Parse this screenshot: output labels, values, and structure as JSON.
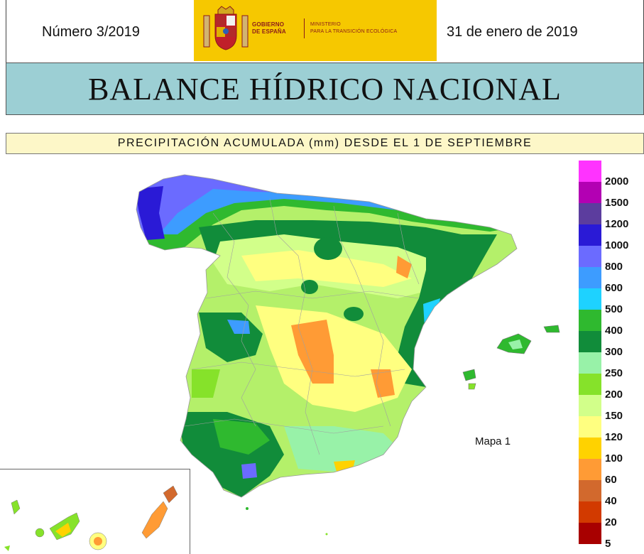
{
  "header": {
    "issue": "Número 3/2019",
    "date": "31 de enero de 2019",
    "logo": {
      "gobierno": "GOBIERNO DE ESPAÑA",
      "ministerio": "MINISTERIO PARA LA TRANSICIÓN ECOLÓGICA"
    }
  },
  "title": "BALANCE HÍDRICO NACIONAL",
  "subtitle": "PRECIPITACIÓN ACUMULADA (mm) DESDE EL 1 DE SEPTIEMBRE",
  "map": {
    "label": "Mapa 1"
  },
  "legend": {
    "items": [
      {
        "label": "2000",
        "color": "#ff33ff"
      },
      {
        "label": "1500",
        "color": "#b300b3"
      },
      {
        "label": "1200",
        "color": "#5c3d9e"
      },
      {
        "label": "1000",
        "color": "#2a1ad6"
      },
      {
        "label": "800",
        "color": "#6b6bff"
      },
      {
        "label": "600",
        "color": "#3d9cff"
      },
      {
        "label": "500",
        "color": "#1ed2ff"
      },
      {
        "label": "400",
        "color": "#2fb92f"
      },
      {
        "label": "300",
        "color": "#118c3a"
      },
      {
        "label": "250",
        "color": "#98f2a8"
      },
      {
        "label": "200",
        "color": "#86e22a"
      },
      {
        "label": "150",
        "color": "#d2ff8a"
      },
      {
        "label": "120",
        "color": "#ffff80"
      },
      {
        "label": "100",
        "color": "#ffd200"
      },
      {
        "label": "60",
        "color": "#ff9b35"
      },
      {
        "label": "40",
        "color": "#d2692d"
      },
      {
        "label": "20",
        "color": "#d23a00"
      },
      {
        "label": "5",
        "color": "#a80000"
      }
    ]
  }
}
